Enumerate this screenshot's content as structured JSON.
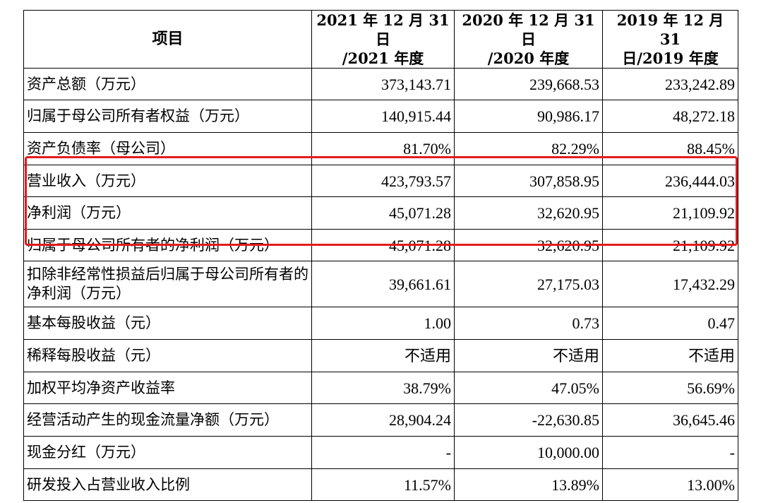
{
  "headers": {
    "item": "项目",
    "col1_line1": "2021 年 12 月 31 日",
    "col1_line2": "/2021 年度",
    "col2_line1": "2020 年 12 月 31 日",
    "col2_line2": "/2020 年度",
    "col3_line1": "2019 年 12 月 31",
    "col3_line2": "日/2019 年度"
  },
  "rows": [
    {
      "label": "资产总额（万元）",
      "v2021": "373,143.71",
      "v2020": "239,668.53",
      "v2019": "233,242.89"
    },
    {
      "label": "归属于母公司所有者权益（万元）",
      "v2021": "140,915.44",
      "v2020": "90,986.17",
      "v2019": "48,272.18"
    },
    {
      "label": "资产负债率（母公司）",
      "v2021": "81.70%",
      "v2020": "82.29%",
      "v2019": "88.45%"
    },
    {
      "label": "营业收入（万元）",
      "v2021": "423,793.57",
      "v2020": "307,858.95",
      "v2019": "236,444.03"
    },
    {
      "label": "净利润（万元）",
      "v2021": "45,071.28",
      "v2020": "32,620.95",
      "v2019": "21,109.92"
    },
    {
      "label": "归属于母公司所有者的净利润（万元）",
      "v2021": "45,071.28",
      "v2020": "32,620.95",
      "v2019": "21,109.92"
    },
    {
      "label": "扣除非经常性损益后归属于母公司所有者的净利润（万元）",
      "v2021": "39,661.61",
      "v2020": "27,175.03",
      "v2019": "17,432.29"
    },
    {
      "label": "基本每股收益（元）",
      "v2021": "1.00",
      "v2020": "0.73",
      "v2019": "0.47"
    },
    {
      "label": "稀释每股收益（元）",
      "v2021": "不适用",
      "v2020": "不适用",
      "v2019": "不适用"
    },
    {
      "label": "加权平均净资产收益率",
      "v2021": "38.79%",
      "v2020": "47.05%",
      "v2019": "56.69%"
    },
    {
      "label": "经营活动产生的现金流量净额（万元）",
      "v2021": "28,904.24",
      "v2020": "-22,630.85",
      "v2019": "36,645.46"
    },
    {
      "label": "现金分红（万元）",
      "v2021": "-",
      "v2020": "10,000.00",
      "v2019": "-"
    },
    {
      "label": "研发投入占营业收入比例",
      "v2021": "11.57%",
      "v2020": "13.89%",
      "v2019": "13.00%"
    }
  ],
  "highlight_color": "#e31c1c"
}
